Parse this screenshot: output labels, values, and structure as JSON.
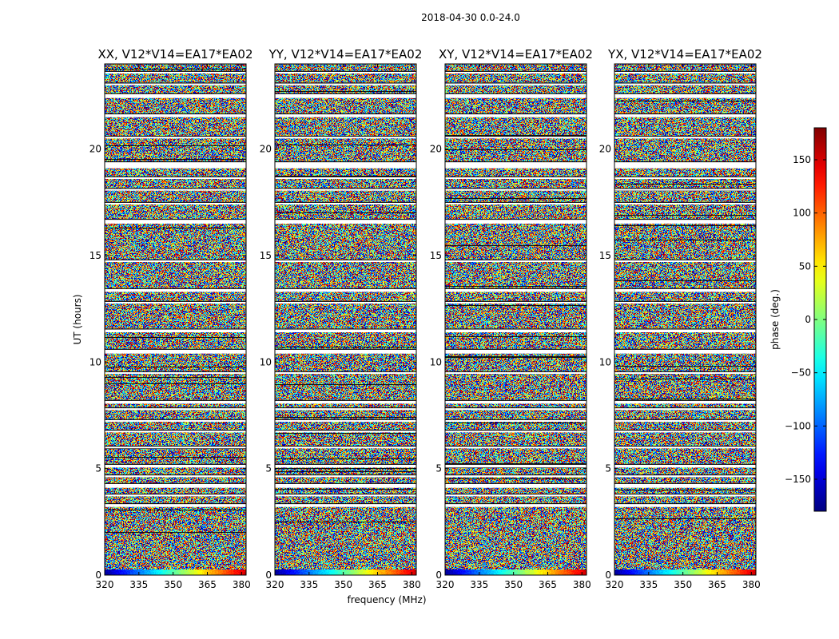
{
  "chart_data": {
    "type": "heatmap",
    "title": "2018-04-30 0.0-24.0",
    "xlabel": "frequency (MHz)",
    "ylabel": "UT (hours)",
    "xlim": [
      320,
      382
    ],
    "ylim": [
      0,
      24
    ],
    "x_ticks": [
      320,
      335,
      350,
      365,
      380
    ],
    "y_ticks": [
      0,
      5,
      10,
      15,
      20
    ],
    "panels": [
      {
        "title": "XX, V12*V14=EA17*EA02"
      },
      {
        "title": "YY, V12*V14=EA17*EA02"
      },
      {
        "title": "XY, V12*V14=EA17*EA02"
      },
      {
        "title": "YX, V12*V14=EA17*EA02"
      }
    ],
    "colorbar": {
      "label": "phase (deg.)",
      "range": [
        -180,
        180
      ],
      "ticks": [
        150,
        100,
        50,
        0,
        -50,
        -100,
        -150
      ],
      "tick_labels": [
        "150",
        "100",
        "50",
        "0",
        "−50",
        "−100",
        "−150"
      ],
      "colormap": "jet"
    },
    "flagged_bands_hours": [
      [
        3.2,
        3.35
      ],
      [
        3.7,
        3.8
      ],
      [
        4.1,
        4.3
      ],
      [
        4.6,
        4.7
      ],
      [
        5.05,
        5.2
      ],
      [
        5.95,
        6.05
      ],
      [
        6.7,
        6.8
      ],
      [
        7.2,
        7.3
      ],
      [
        7.75,
        7.85
      ],
      [
        8.05,
        8.2
      ],
      [
        9.45,
        9.55
      ],
      [
        10.4,
        10.6
      ],
      [
        11.4,
        11.55
      ],
      [
        12.75,
        12.85
      ],
      [
        13.3,
        13.45
      ],
      [
        14.7,
        14.8
      ],
      [
        16.5,
        16.7
      ],
      [
        17.4,
        17.5
      ],
      [
        18.05,
        18.15
      ],
      [
        18.6,
        18.7
      ],
      [
        19.1,
        19.4
      ],
      [
        20.5,
        20.6
      ],
      [
        21.5,
        21.65
      ],
      [
        22.4,
        22.6
      ],
      [
        23.0,
        23.1
      ],
      [
        23.55,
        23.65
      ]
    ]
  }
}
